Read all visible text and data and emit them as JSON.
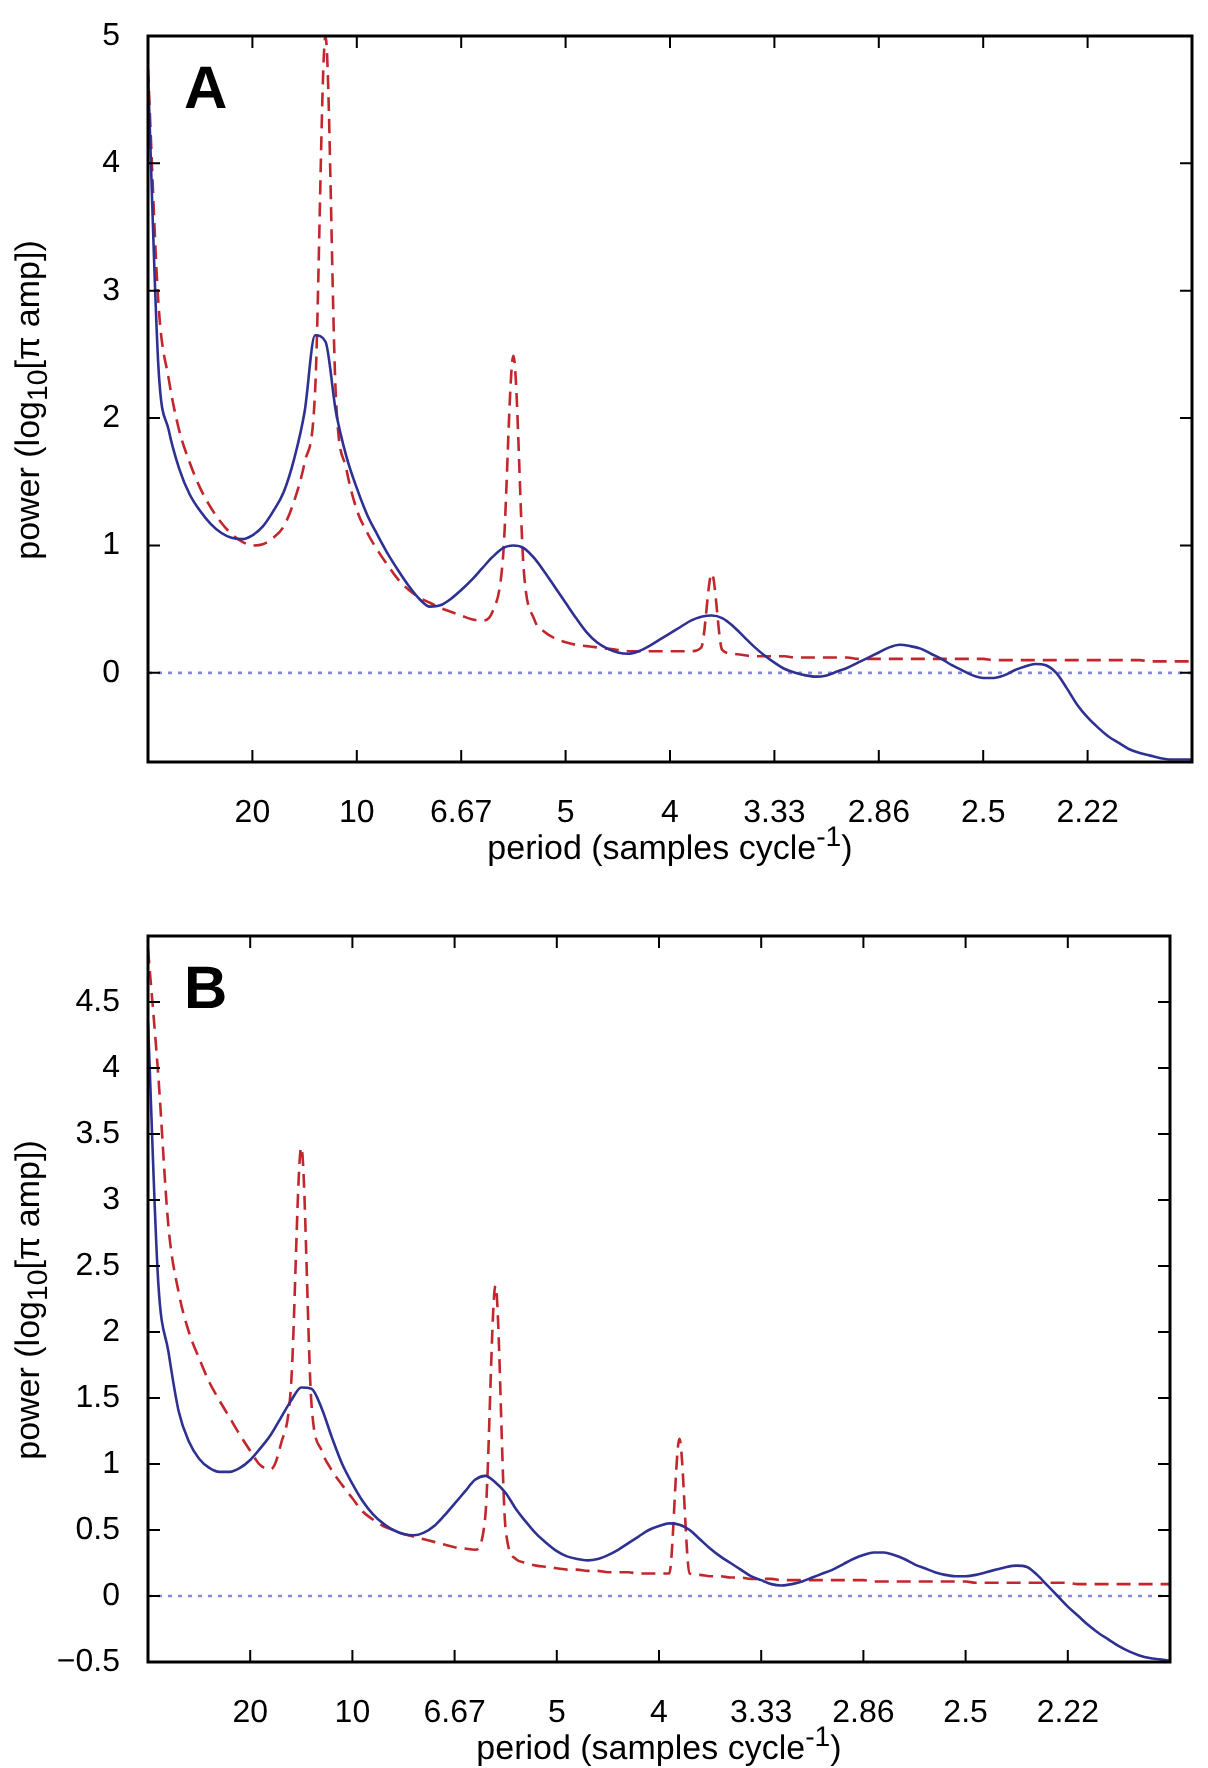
{
  "chart_data": [
    {
      "type": "line",
      "title": "A",
      "xlabel": "period (samples cycle$^{-1}$)",
      "ylabel": "power  (log$_{10}$[π amp])",
      "categories": [
        null,
        null,
        null,
        null,
        null,
        null,
        null,
        null,
        null,
        null,
        "20",
        null,
        null,
        null,
        null,
        null,
        null,
        null,
        null,
        null,
        "10",
        null,
        null,
        null,
        null,
        null,
        null,
        null,
        null,
        null,
        "6.67",
        null,
        null,
        null,
        null,
        null,
        null,
        null,
        null,
        null,
        "5",
        null,
        null,
        null,
        null,
        null,
        null,
        null,
        null,
        null,
        "4",
        null,
        null,
        null,
        null,
        null,
        null,
        null,
        null,
        null,
        "3.33",
        null,
        null,
        null,
        null,
        null,
        null,
        null,
        null,
        null,
        "2.86",
        null,
        null,
        null,
        null,
        null,
        null,
        null,
        null,
        null,
        "2.5",
        null,
        null,
        null,
        null,
        null,
        null,
        null,
        null,
        null,
        "2.22",
        null,
        null,
        null,
        null,
        null,
        null,
        null,
        null,
        null,
        null
      ],
      "ylim": [
        -0.7,
        5
      ],
      "yticks": [
        0,
        1,
        2,
        3,
        4,
        5
      ],
      "ref_lines": [
        {
          "axis": "y",
          "value": 0,
          "color": "#8888dd",
          "line_style": "dotted"
        }
      ],
      "series": [
        {
          "color": "#2e3192",
          "line_style": "solid",
          "values": [
            4.7,
            2.4,
            1.9,
            1.6,
            1.4,
            1.27,
            1.17,
            1.1,
            1.06,
            1.05,
            1.08,
            1.15,
            1.27,
            1.42,
            1.68,
            2.05,
            2.65,
            2.6,
            2.05,
            1.7,
            1.45,
            1.24,
            1.08,
            0.93,
            0.8,
            0.68,
            0.58,
            0.52,
            0.53,
            0.58,
            0.65,
            0.73,
            0.82,
            0.91,
            0.98,
            1.0,
            0.98,
            0.9,
            0.79,
            0.67,
            0.55,
            0.43,
            0.32,
            0.24,
            0.19,
            0.16,
            0.15,
            0.17,
            0.21,
            0.26,
            0.31,
            0.36,
            0.41,
            0.44,
            0.45,
            0.43,
            0.37,
            0.29,
            0.21,
            0.14,
            0.08,
            0.03,
            0,
            -0.02,
            -0.03,
            -0.02,
            0.01,
            0.04,
            0.08,
            0.12,
            0.16,
            0.2,
            0.22,
            0.21,
            0.19,
            0.15,
            0.11,
            0.06,
            0.02,
            -0.02,
            -0.04,
            -0.04,
            -0.02,
            0.02,
            0.05,
            0.07,
            0.06,
            0,
            -0.12,
            -0.25,
            -0.35,
            -0.43,
            -0.5,
            -0.55,
            -0.6,
            -0.63,
            -0.65,
            -0.67,
            -0.68,
            -0.68,
            -0.68
          ]
        },
        {
          "color": "#c1272d",
          "line_style": "dashed",
          "values": [
            4.74,
            2.9,
            2.3,
            1.9,
            1.65,
            1.45,
            1.3,
            1.18,
            1.09,
            1.03,
            1.0,
            1.01,
            1.06,
            1.15,
            1.35,
            1.65,
            2.2,
            5,
            2.16,
            1.6,
            1.28,
            1.1,
            0.96,
            0.84,
            0.73,
            0.65,
            0.59,
            0.55,
            0.51,
            0.48,
            0.45,
            0.42,
            0.41,
            0.48,
            0.9,
            2.49,
            0.8,
            0.42,
            0.32,
            0.27,
            0.24,
            0.22,
            0.21,
            0.2,
            0.19,
            0.18,
            0.17,
            0.17,
            0.17,
            0.17,
            0.17,
            0.17,
            0.17,
            0.2,
            0.78,
            0.18,
            0.15,
            0.14,
            0.13,
            0.13,
            0.13,
            0.13,
            0.12,
            0.12,
            0.12,
            0.12,
            0.12,
            0.12,
            0.11,
            0.11,
            0.11,
            0.11,
            0.11,
            0.11,
            0.11,
            0.11,
            0.11,
            0.11,
            0.11,
            0.11,
            0.11,
            0.1,
            0.1,
            0.1,
            0.1,
            0.1,
            0.1,
            0.1,
            0.1,
            0.1,
            0.1,
            0.1,
            0.1,
            0.1,
            0.1,
            0.1,
            0.09,
            0.09,
            0.09,
            0.09,
            0.09
          ]
        }
      ]
    },
    {
      "type": "line",
      "title": "B",
      "xlabel": "period (samples cycle$^{-1}$)",
      "ylabel": "power  (log$_{10}$[π amp])",
      "categories": [
        null,
        null,
        null,
        null,
        null,
        null,
        null,
        null,
        null,
        null,
        "20",
        null,
        null,
        null,
        null,
        null,
        null,
        null,
        null,
        null,
        "10",
        null,
        null,
        null,
        null,
        null,
        null,
        null,
        null,
        null,
        "6.67",
        null,
        null,
        null,
        null,
        null,
        null,
        null,
        null,
        null,
        "5",
        null,
        null,
        null,
        null,
        null,
        null,
        null,
        null,
        null,
        "4",
        null,
        null,
        null,
        null,
        null,
        null,
        null,
        null,
        null,
        "3.33",
        null,
        null,
        null,
        null,
        null,
        null,
        null,
        null,
        null,
        "2.86",
        null,
        null,
        null,
        null,
        null,
        null,
        null,
        null,
        null,
        "2.5",
        null,
        null,
        null,
        null,
        null,
        null,
        null,
        null,
        null,
        "2.22",
        null,
        null,
        null,
        null,
        null,
        null,
        null,
        null,
        null,
        null
      ],
      "ylim": [
        -0.5,
        5
      ],
      "yticks": [
        {
          "value": -0.5,
          "label": "−0.5"
        },
        0,
        0.5,
        1,
        1.5,
        2,
        2.5,
        3,
        3.5,
        4,
        4.5
      ],
      "ref_lines": [
        {
          "axis": "y",
          "value": 0,
          "color": "#8888dd",
          "line_style": "dotted"
        }
      ],
      "series": [
        {
          "color": "#2e3192",
          "line_style": "solid",
          "values": [
            4.35,
            2.38,
            1.85,
            1.4,
            1.17,
            1.04,
            0.97,
            0.94,
            0.94,
            0.97,
            1.03,
            1.12,
            1.22,
            1.35,
            1.48,
            1.58,
            1.57,
            1.42,
            1.2,
            1.0,
            0.85,
            0.72,
            0.62,
            0.55,
            0.5,
            0.47,
            0.46,
            0.48,
            0.53,
            0.61,
            0.7,
            0.79,
            0.88,
            0.91,
            0.86,
            0.78,
            0.66,
            0.56,
            0.47,
            0.4,
            0.34,
            0.3,
            0.28,
            0.27,
            0.28,
            0.31,
            0.35,
            0.4,
            0.45,
            0.5,
            0.53,
            0.55,
            0.54,
            0.5,
            0.43,
            0.36,
            0.3,
            0.25,
            0.2,
            0.15,
            0.12,
            0.09,
            0.08,
            0.09,
            0.11,
            0.14,
            0.17,
            0.2,
            0.24,
            0.28,
            0.31,
            0.33,
            0.33,
            0.31,
            0.28,
            0.24,
            0.21,
            0.18,
            0.16,
            0.15,
            0.15,
            0.16,
            0.18,
            0.2,
            0.22,
            0.23,
            0.22,
            0.16,
            0.08,
            0,
            -0.08,
            -0.15,
            -0.22,
            -0.28,
            -0.33,
            -0.38,
            -0.42,
            -0.45,
            -0.47,
            -0.48,
            -0.49
          ]
        },
        {
          "color": "#c1272d",
          "line_style": "dashed",
          "values": [
            4.9,
            3.95,
            2.8,
            2.3,
            2.0,
            1.8,
            1.62,
            1.48,
            1.35,
            1.22,
            1.1,
            0.99,
            0.96,
            1.15,
            1.6,
            3.4,
            1.45,
            1.1,
            0.95,
            0.84,
            0.74,
            0.64,
            0.58,
            0.53,
            0.5,
            0.47,
            0.45,
            0.43,
            0.41,
            0.39,
            0.37,
            0.36,
            0.35,
            0.6,
            2.35,
            0.5,
            0.28,
            0.25,
            0.23,
            0.22,
            0.21,
            0.2,
            0.2,
            0.19,
            0.19,
            0.18,
            0.18,
            0.18,
            0.17,
            0.17,
            0.17,
            0.17,
            1.19,
            0.17,
            0.16,
            0.15,
            0.15,
            0.14,
            0.14,
            0.13,
            0.13,
            0.13,
            0.12,
            0.12,
            0.12,
            0.12,
            0.12,
            0.12,
            0.12,
            0.12,
            0.12,
            0.11,
            0.11,
            0.11,
            0.11,
            0.11,
            0.11,
            0.11,
            0.11,
            0.11,
            0.11,
            0.1,
            0.1,
            0.1,
            0.1,
            0.1,
            0.1,
            0.1,
            0.1,
            0.1,
            0.1,
            0.09,
            0.09,
            0.09,
            0.09,
            0.09,
            0.09,
            0.09,
            0.09,
            0.09,
            0.09
          ]
        }
      ]
    }
  ]
}
